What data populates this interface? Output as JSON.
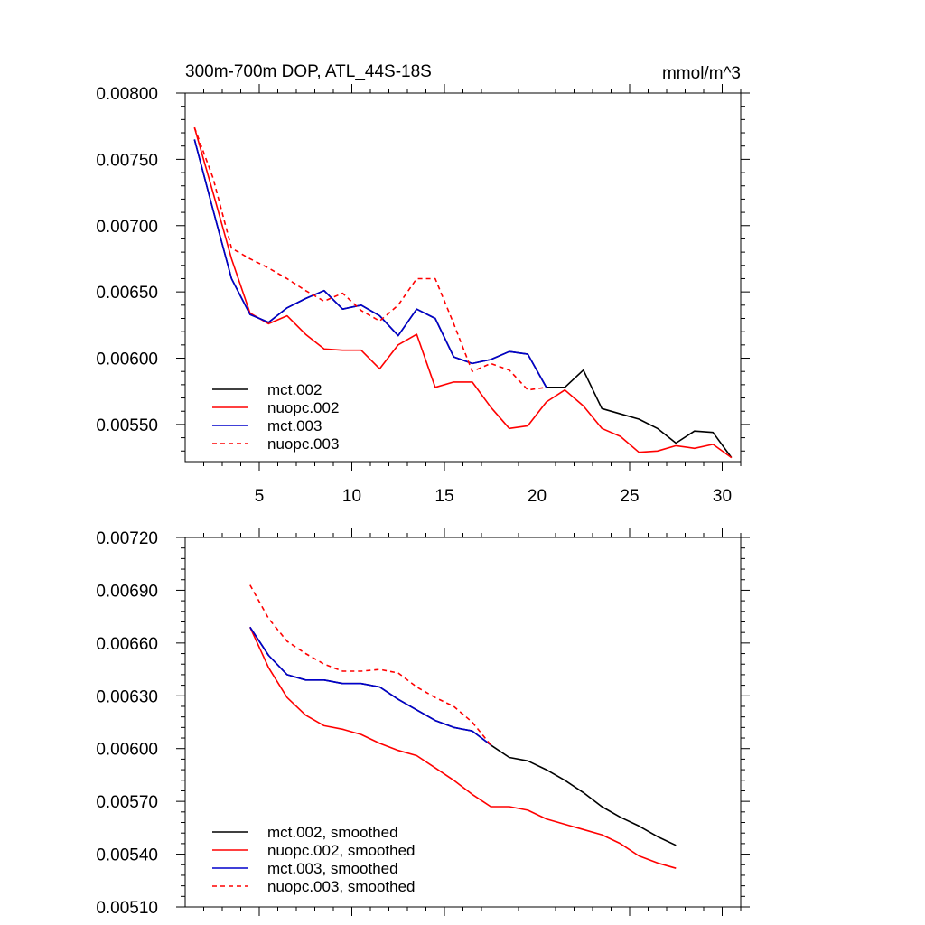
{
  "chart_data": [
    {
      "type": "line",
      "title_left": "300m-700m DOP, ATL_44S-18S",
      "title_right": "mmol/m^3",
      "xlim": [
        1,
        31
      ],
      "ylim": [
        0.00522,
        0.008
      ],
      "x_ticks": [
        5,
        10,
        15,
        20,
        25,
        30
      ],
      "x_tick_labels": [
        "5",
        "10",
        "15",
        "20",
        "25",
        "30"
      ],
      "y_ticks": [
        0.0055,
        0.006,
        0.0065,
        0.007,
        0.0075,
        0.008
      ],
      "y_tick_labels": [
        "0.00550",
        "0.00600",
        "0.00650",
        "0.00700",
        "0.00750",
        "0.00800"
      ],
      "legend_position": "bottom-left",
      "series": [
        {
          "name": "mct.002",
          "color": "#000000",
          "dash": "solid",
          "x": [
            1.5,
            2.5,
            3.5,
            4.5,
            5.5,
            6.5,
            7.5,
            8.5,
            9.5,
            10.5,
            11.5,
            12.5,
            13.5,
            14.5,
            15.5,
            16.5,
            17.5,
            18.5,
            19.5,
            20.5,
            21.5,
            22.5,
            23.5,
            24.5,
            25.5,
            26.5,
            27.5,
            28.5,
            29.5,
            30.5
          ],
          "y": [
            0.00765,
            0.00712,
            0.0066,
            0.00633,
            0.00627,
            0.00638,
            0.00645,
            0.00651,
            0.00637,
            0.0064,
            0.00632,
            0.00617,
            0.00637,
            0.0063,
            0.00601,
            0.00596,
            0.00599,
            0.00605,
            0.00603,
            0.00578,
            0.00578,
            0.00591,
            0.00562,
            0.00558,
            0.00554,
            0.00547,
            0.00536,
            0.00545,
            0.00544,
            0.00525
          ]
        },
        {
          "name": "nuopc.002",
          "color": "#ff0000",
          "dash": "solid",
          "x": [
            1.5,
            2.5,
            3.5,
            4.5,
            5.5,
            6.5,
            7.5,
            8.5,
            9.5,
            10.5,
            11.5,
            12.5,
            13.5,
            14.5,
            15.5,
            16.5,
            17.5,
            18.5,
            19.5,
            20.5,
            21.5,
            22.5,
            23.5,
            24.5,
            25.5,
            26.5,
            27.5,
            28.5,
            29.5,
            30.5
          ],
          "y": [
            0.00774,
            0.00725,
            0.00675,
            0.00634,
            0.00626,
            0.00632,
            0.00618,
            0.00607,
            0.00606,
            0.00606,
            0.00592,
            0.0061,
            0.00618,
            0.00578,
            0.00582,
            0.00582,
            0.00563,
            0.00547,
            0.00549,
            0.00567,
            0.00576,
            0.00564,
            0.00547,
            0.00541,
            0.00529,
            0.0053,
            0.00534,
            0.00532,
            0.00535,
            0.00525
          ]
        },
        {
          "name": "mct.003",
          "color": "#0000cc",
          "dash": "solid",
          "x": [
            1.5,
            2.5,
            3.5,
            4.5,
            5.5,
            6.5,
            7.5,
            8.5,
            9.5,
            10.5,
            11.5,
            12.5,
            13.5,
            14.5,
            15.5,
            16.5,
            17.5,
            18.5,
            19.5,
            20.5
          ],
          "y": [
            0.00765,
            0.00712,
            0.0066,
            0.00633,
            0.00627,
            0.00638,
            0.00645,
            0.00651,
            0.00637,
            0.0064,
            0.00632,
            0.00617,
            0.00637,
            0.0063,
            0.00601,
            0.00596,
            0.00599,
            0.00605,
            0.00603,
            0.00578
          ]
        },
        {
          "name": "nuopc.003",
          "color": "#ff0000",
          "dash": "dashed",
          "x": [
            1.5,
            2.5,
            3.5,
            4.5,
            5.5,
            6.5,
            7.5,
            8.5,
            9.5,
            10.5,
            11.5,
            12.5,
            13.5,
            14.5,
            15.5,
            16.5,
            17.5,
            18.5,
            19.5,
            20.5
          ],
          "y": [
            0.00774,
            0.00736,
            0.00683,
            0.00675,
            0.00668,
            0.0066,
            0.00651,
            0.00643,
            0.00649,
            0.00636,
            0.00628,
            0.0064,
            0.0066,
            0.0066,
            0.00626,
            0.0059,
            0.00596,
            0.00591,
            0.00576,
            0.00578
          ]
        }
      ]
    },
    {
      "type": "line",
      "xlim": [
        1,
        31
      ],
      "ylim": [
        0.0051,
        0.0072
      ],
      "x_ticks": [
        5,
        10,
        15,
        20,
        25,
        30
      ],
      "x_tick_labels": [],
      "y_ticks": [
        0.0051,
        0.0054,
        0.0057,
        0.006,
        0.0063,
        0.0066,
        0.0069,
        0.0072
      ],
      "y_tick_labels": [
        "0.00510",
        "0.00540",
        "0.00570",
        "0.00600",
        "0.00630",
        "0.00660",
        "0.00690",
        "0.00720"
      ],
      "legend_position": "bottom-left",
      "series": [
        {
          "name": "mct.002, smoothed",
          "color": "#000000",
          "dash": "solid",
          "x": [
            4.5,
            5.5,
            6.5,
            7.5,
            8.5,
            9.5,
            10.5,
            11.5,
            12.5,
            13.5,
            14.5,
            15.5,
            16.5,
            17.5,
            18.5,
            19.5,
            20.5,
            21.5,
            22.5,
            23.5,
            24.5,
            25.5,
            26.5,
            27.5
          ],
          "y": [
            0.00669,
            0.00653,
            0.00642,
            0.00639,
            0.00639,
            0.00637,
            0.00637,
            0.00635,
            0.00628,
            0.00622,
            0.00616,
            0.00612,
            0.0061,
            0.00602,
            0.00595,
            0.00593,
            0.00588,
            0.00582,
            0.00575,
            0.00567,
            0.00561,
            0.00556,
            0.0055,
            0.00545
          ]
        },
        {
          "name": "nuopc.002, smoothed",
          "color": "#ff0000",
          "dash": "solid",
          "x": [
            4.5,
            5.5,
            6.5,
            7.5,
            8.5,
            9.5,
            10.5,
            11.5,
            12.5,
            13.5,
            14.5,
            15.5,
            16.5,
            17.5,
            18.5,
            19.5,
            20.5,
            21.5,
            22.5,
            23.5,
            24.5,
            25.5,
            26.5,
            27.5
          ],
          "y": [
            0.00669,
            0.00646,
            0.00629,
            0.00619,
            0.00613,
            0.00611,
            0.00608,
            0.00603,
            0.00599,
            0.00596,
            0.00589,
            0.00582,
            0.00574,
            0.00567,
            0.00567,
            0.00565,
            0.0056,
            0.00557,
            0.00554,
            0.00551,
            0.00546,
            0.00539,
            0.00535,
            0.00532
          ]
        },
        {
          "name": "mct.003, smoothed",
          "color": "#0000cc",
          "dash": "solid",
          "x": [
            4.5,
            5.5,
            6.5,
            7.5,
            8.5,
            9.5,
            10.5,
            11.5,
            12.5,
            13.5,
            14.5,
            15.5,
            16.5,
            17.5
          ],
          "y": [
            0.00669,
            0.00653,
            0.00642,
            0.00639,
            0.00639,
            0.00637,
            0.00637,
            0.00635,
            0.00628,
            0.00622,
            0.00616,
            0.00612,
            0.0061,
            0.00602
          ]
        },
        {
          "name": "nuopc.003, smoothed",
          "color": "#ff0000",
          "dash": "dashed",
          "x": [
            4.5,
            5.5,
            6.5,
            7.5,
            8.5,
            9.5,
            10.5,
            11.5,
            12.5,
            13.5,
            14.5,
            15.5,
            16.5,
            17.5
          ],
          "y": [
            0.00693,
            0.00674,
            0.00661,
            0.00654,
            0.00648,
            0.00644,
            0.00644,
            0.00645,
            0.00643,
            0.00635,
            0.00629,
            0.00624,
            0.00615,
            0.00602
          ]
        }
      ]
    }
  ]
}
